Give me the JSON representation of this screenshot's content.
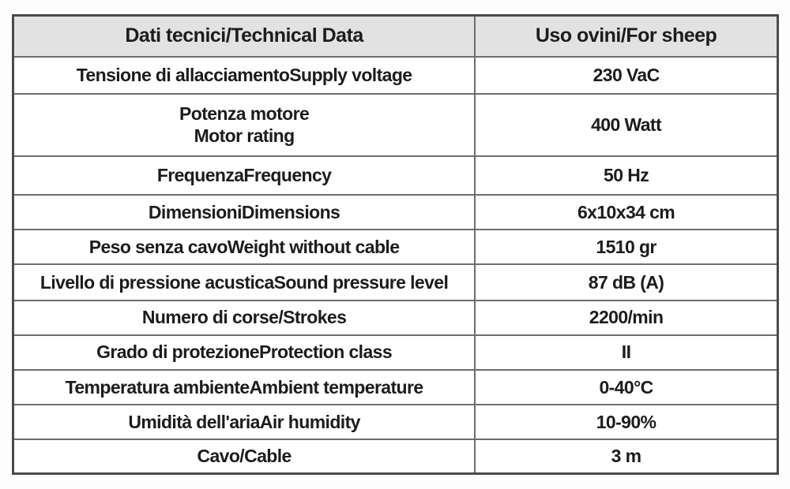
{
  "colors": {
    "header_background": "#e2e2e2",
    "body_background": "#ffffff",
    "outer_border": "#4a4a4a",
    "inner_border": "#6e6e6e",
    "text": "#1c1c1c"
  },
  "table": {
    "headers": {
      "label_column": "Dati tecnici/Technical Data",
      "value_column": "Uso ovini/For sheep"
    },
    "rows": [
      {
        "label": "Tensione di allacciamentoSupply voltage",
        "value": "230 VaC"
      },
      {
        "label": "Potenza motore\nMotor rating",
        "value": "400 Watt"
      },
      {
        "label": "FrequenzaFrequency",
        "value": "50 Hz"
      },
      {
        "label": "DimensioniDimensions",
        "value": "6x10x34 cm"
      },
      {
        "label": "Peso senza cavoWeight without cable",
        "value": "1510 gr"
      },
      {
        "label": "Livello di pressione acusticaSound pressure level",
        "value": "87 dB (A)"
      },
      {
        "label": "Numero di corse/Strokes",
        "value": "2200/min"
      },
      {
        "label": "Grado di protezioneProtection class",
        "value": "II"
      },
      {
        "label": "Temperatura ambienteAmbient temperature",
        "value": "0-40°C"
      },
      {
        "label": "Umidità dell'ariaAir humidity",
        "value": "10-90%"
      },
      {
        "label": "Cavo/Cable",
        "value": "3 m"
      }
    ]
  }
}
